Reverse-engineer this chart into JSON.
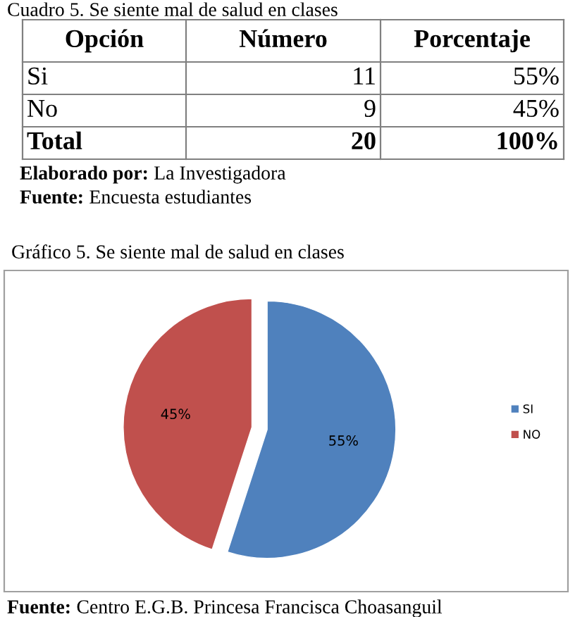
{
  "chart_data": {
    "type": "pie",
    "title": "Gráfico 5. Se siente mal de salud en clases",
    "categories": [
      "SI",
      "NO"
    ],
    "values": [
      55,
      45
    ],
    "colors": [
      "#4f81bd",
      "#c0504d"
    ],
    "value_labels": [
      "55%",
      "45%"
    ],
    "legend": "right",
    "annotations": [
      "Cuadro 5. Se siente mal de salud en clases",
      "Opción",
      "Número",
      "Porcentaje",
      "Si",
      "11",
      "55%",
      "No",
      "9",
      "45%",
      "Total",
      "20",
      "100%",
      "Elaborado por: La Investigadora",
      "Fuente: Encuesta estudiantes",
      "Fuente: Centro E.G.B. Princesa Francisca Choasanguil"
    ]
  }
}
